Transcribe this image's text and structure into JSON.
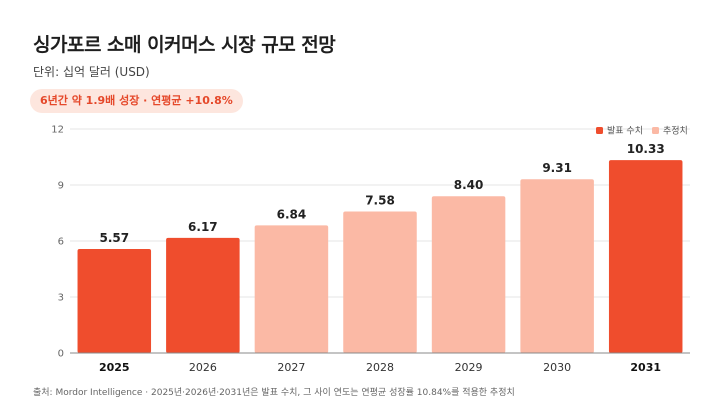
{
  "header": {
    "title": "싱가포르 소매 이커머스 시장 규모 전망",
    "subtitle": "단위: 십억 달러 (USD)",
    "badge": "6년간 약 1.9배 성장 · 연평균 +10.8%"
  },
  "footer": {
    "source": "출처: Mordor Intelligence · 2025년·2026년·2031년은 발표 수치, 그 사이 연도는 연평균 성장률 10.84%를 적용한 추정치"
  },
  "colors": {
    "reported": "#ef4d2d",
    "estimated": "#fbb9a5",
    "grid": "#e6e6e6",
    "axis": "#888888"
  },
  "chart_data": {
    "type": "bar",
    "categories": [
      "2025",
      "2026",
      "2027",
      "2028",
      "2029",
      "2030",
      "2031"
    ],
    "series": [
      {
        "values": [
          5.57,
          6.17,
          6.84,
          7.58,
          8.4,
          9.31,
          10.33
        ],
        "value_labels": [
          "5.57",
          "6.17",
          "6.84",
          "7.58",
          "8.40",
          "9.31",
          "10.33"
        ],
        "types": [
          "reported",
          "reported",
          "estimated",
          "estimated",
          "estimated",
          "estimated",
          "reported"
        ]
      }
    ],
    "bold_categories": [
      "2025",
      "2031"
    ],
    "ylim": [
      0,
      12
    ],
    "yticks": [
      0,
      3,
      6,
      9,
      12
    ],
    "grid": true,
    "legend_position": "top-right",
    "legend": [
      {
        "label": "발표 수치",
        "type": "reported"
      },
      {
        "label": "추정치",
        "type": "estimated"
      }
    ]
  }
}
